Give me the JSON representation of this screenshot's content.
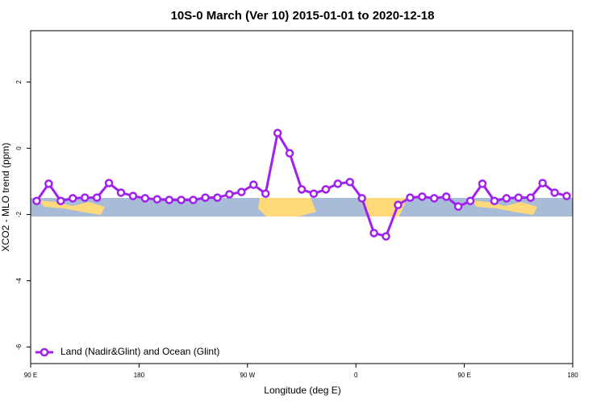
{
  "chart_data": {
    "type": "line",
    "title": "10S-0 March (Ver 10)   2015-01-01 to 2020-12-18",
    "x_label": "Longitude (deg E)",
    "y_label": "XCO2 - MLO trend (ppm)",
    "x": [
      95,
      105,
      115,
      125,
      135,
      145,
      155,
      165,
      175,
      185,
      195,
      205,
      215,
      225,
      235,
      245,
      255,
      265,
      275,
      285,
      295,
      305,
      315,
      325,
      335,
      345,
      355,
      365,
      375,
      385,
      395,
      405,
      415,
      425,
      435,
      445,
      455,
      465,
      475,
      485,
      495,
      505,
      515,
      525,
      535
    ],
    "series": [
      {
        "name": "Land (Nadir&Glint) and Ocean (Glint)",
        "color": "#a020f0",
        "values": [
          -1.59,
          -1.07,
          -1.59,
          -1.51,
          -1.49,
          -1.49,
          -1.05,
          -1.34,
          -1.44,
          -1.51,
          -1.54,
          -1.56,
          -1.56,
          -1.56,
          -1.49,
          -1.49,
          -1.39,
          -1.32,
          -1.1,
          -1.37,
          0.46,
          -0.15,
          -1.24,
          -1.37,
          -1.24,
          -1.07,
          -1.02,
          -1.51,
          -2.56,
          -2.66,
          -1.71,
          -1.49,
          -1.46,
          -1.51,
          -1.46,
          -1.76,
          -1.59,
          -1.07,
          -1.59,
          -1.51,
          -1.49,
          -1.49,
          -1.05,
          -1.34,
          -1.44
        ]
      }
    ],
    "xlim": [
      90,
      540
    ],
    "xticks": [
      {
        "value": 90,
        "label": "90 E"
      },
      {
        "value": 180,
        "label": "180"
      },
      {
        "value": 270,
        "label": "90 W"
      },
      {
        "value": 360,
        "label": "0"
      },
      {
        "value": 450,
        "label": "90 E"
      },
      {
        "value": 540,
        "label": "180"
      }
    ],
    "ylim": [
      -6.5,
      3.55
    ],
    "yticks": [
      2,
      0,
      -2,
      -4,
      -6
    ],
    "legend": "bottom-left"
  }
}
